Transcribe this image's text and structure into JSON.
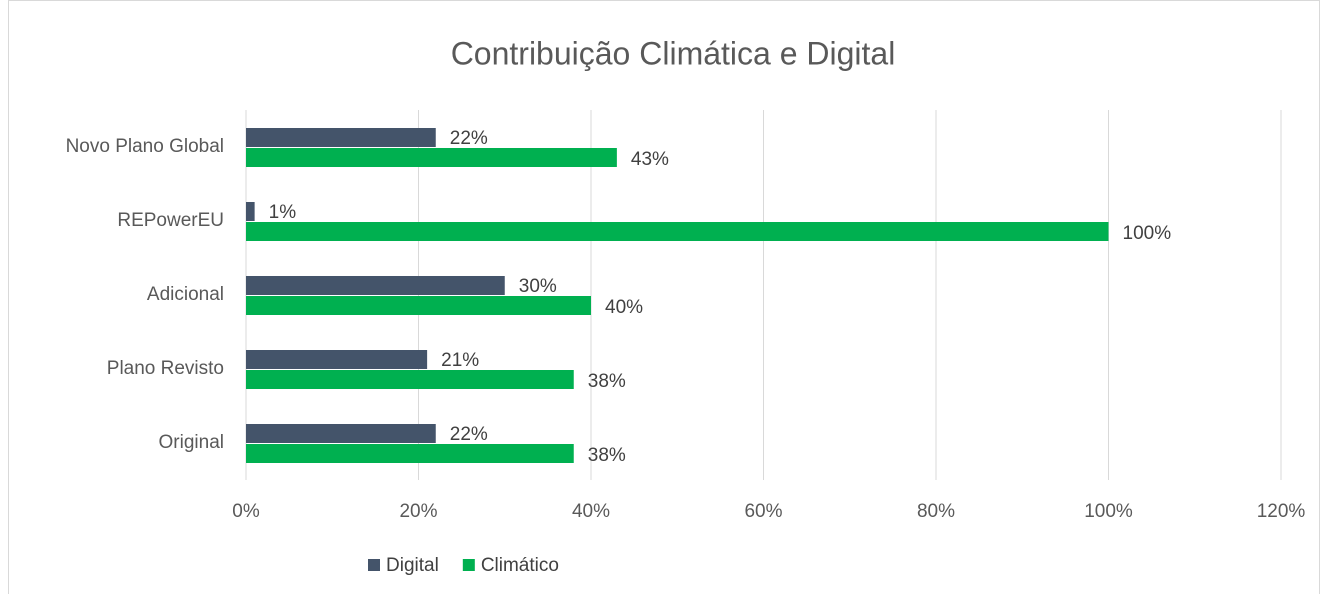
{
  "chart_data": {
    "type": "bar",
    "orientation": "horizontal",
    "title": "Contribuição Climática e Digital",
    "categories": [
      "Novo Plano Global",
      "REPowerEU",
      "Adicional",
      "Plano Revisto",
      "Original"
    ],
    "series": [
      {
        "name": "Digital",
        "color": "#44546a",
        "values": [
          22,
          1,
          30,
          21,
          22
        ],
        "value_labels": [
          "22%",
          "1%",
          "30%",
          "21%",
          "22%"
        ]
      },
      {
        "name": "Climático",
        "color": "#00b050",
        "values": [
          43,
          100,
          40,
          38,
          38
        ],
        "value_labels": [
          "43%",
          "100%",
          "40%",
          "38%",
          "38%"
        ]
      }
    ],
    "xlim": [
      0,
      120
    ],
    "xticks": [
      {
        "value": 0,
        "label": "0%"
      },
      {
        "value": 20,
        "label": "20%"
      },
      {
        "value": 40,
        "label": "40%"
      },
      {
        "value": 60,
        "label": "60%"
      },
      {
        "value": 80,
        "label": "80%"
      },
      {
        "value": 100,
        "label": "100%"
      },
      {
        "value": 120,
        "label": "120%"
      }
    ],
    "grid": true,
    "legend": "bottom"
  }
}
